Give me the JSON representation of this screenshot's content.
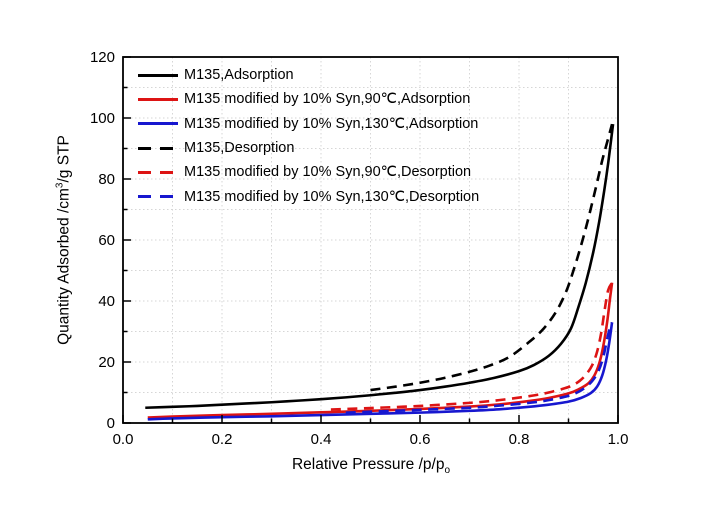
{
  "figure": {
    "background": "#ffffff"
  },
  "chart_data": {
    "type": "line",
    "title": "",
    "xlabel": {
      "text": "Relative Pressure /p/p",
      "sub": "o"
    },
    "ylabel": {
      "prefix": "Quantity Adsorbed /cm",
      "sup": "3",
      "suffix": "/g STP"
    },
    "xlim": [
      0.0,
      1.0
    ],
    "ylim": [
      0,
      120
    ],
    "x_ticks": {
      "values": [
        0.0,
        0.2,
        0.4,
        0.6,
        0.8,
        1.0
      ],
      "labels": [
        "0.0",
        "0.2",
        "0.4",
        "0.6",
        "0.8",
        "1.0"
      ]
    },
    "y_ticks": {
      "values": [
        0,
        20,
        40,
        60,
        80,
        100,
        120
      ],
      "labels": [
        "0",
        "20",
        "40",
        "60",
        "80",
        "100",
        "120"
      ]
    },
    "x_minor_step": 0.1,
    "y_minor_step": 10,
    "grid": {
      "show": true,
      "style": "dotted",
      "color": "#d6d6d6",
      "x_step": 0.1,
      "y_step": 10
    },
    "axis_color": "#000000",
    "legend_position": "top-left-inside",
    "series": [
      {
        "name": "M135,Adsorption",
        "color": "#000000",
        "line_style": "solid",
        "points": [
          [
            0.045,
            5.0
          ],
          [
            0.1,
            5.3
          ],
          [
            0.15,
            5.6
          ],
          [
            0.2,
            6.0
          ],
          [
            0.25,
            6.4
          ],
          [
            0.3,
            6.8
          ],
          [
            0.35,
            7.3
          ],
          [
            0.4,
            7.8
          ],
          [
            0.45,
            8.4
          ],
          [
            0.5,
            9.1
          ],
          [
            0.55,
            9.9
          ],
          [
            0.6,
            10.8
          ],
          [
            0.65,
            11.9
          ],
          [
            0.7,
            13.2
          ],
          [
            0.75,
            14.8
          ],
          [
            0.8,
            17.0
          ],
          [
            0.83,
            19.0
          ],
          [
            0.86,
            22.0
          ],
          [
            0.885,
            26.0
          ],
          [
            0.905,
            31.0
          ],
          [
            0.92,
            38.0
          ],
          [
            0.935,
            46.0
          ],
          [
            0.95,
            56.0
          ],
          [
            0.962,
            66.0
          ],
          [
            0.972,
            76.0
          ],
          [
            0.98,
            85.0
          ],
          [
            0.99,
            98.0
          ]
        ]
      },
      {
        "name": "M135 modified by 10% Syn,90℃,Adsorption",
        "color": "#dd1414",
        "line_style": "solid",
        "points": [
          [
            0.05,
            1.8
          ],
          [
            0.1,
            2.1
          ],
          [
            0.2,
            2.6
          ],
          [
            0.3,
            3.0
          ],
          [
            0.4,
            3.5
          ],
          [
            0.5,
            4.0
          ],
          [
            0.6,
            4.6
          ],
          [
            0.7,
            5.4
          ],
          [
            0.76,
            6.1
          ],
          [
            0.82,
            7.2
          ],
          [
            0.86,
            8.2
          ],
          [
            0.9,
            9.7
          ],
          [
            0.92,
            11.0
          ],
          [
            0.94,
            13.0
          ],
          [
            0.952,
            15.5
          ],
          [
            0.962,
            19.5
          ],
          [
            0.97,
            25.0
          ],
          [
            0.978,
            33.0
          ],
          [
            0.984,
            41.0
          ],
          [
            0.988,
            46.0
          ]
        ]
      },
      {
        "name": "M135 modified by 10% Syn,130℃,Adsorption",
        "color": "#1717cf",
        "line_style": "solid",
        "points": [
          [
            0.05,
            1.2
          ],
          [
            0.1,
            1.5
          ],
          [
            0.2,
            1.9
          ],
          [
            0.3,
            2.2
          ],
          [
            0.4,
            2.6
          ],
          [
            0.5,
            3.0
          ],
          [
            0.6,
            3.4
          ],
          [
            0.7,
            4.0
          ],
          [
            0.76,
            4.5
          ],
          [
            0.82,
            5.3
          ],
          [
            0.86,
            6.0
          ],
          [
            0.9,
            7.0
          ],
          [
            0.925,
            8.2
          ],
          [
            0.945,
            9.8
          ],
          [
            0.958,
            12.0
          ],
          [
            0.968,
            15.5
          ],
          [
            0.976,
            20.5
          ],
          [
            0.982,
            26.0
          ],
          [
            0.988,
            33.0
          ]
        ]
      },
      {
        "name": "M135,Desorption",
        "color": "#000000",
        "line_style": "dashed",
        "points": [
          [
            0.5,
            10.8
          ],
          [
            0.55,
            11.9
          ],
          [
            0.6,
            13.2
          ],
          [
            0.65,
            14.8
          ],
          [
            0.7,
            16.8
          ],
          [
            0.74,
            18.8
          ],
          [
            0.78,
            21.6
          ],
          [
            0.82,
            26.5
          ],
          [
            0.85,
            31.0
          ],
          [
            0.875,
            36.5
          ],
          [
            0.895,
            43.0
          ],
          [
            0.91,
            50.0
          ],
          [
            0.925,
            58.0
          ],
          [
            0.94,
            67.0
          ],
          [
            0.955,
            77.0
          ],
          [
            0.968,
            86.0
          ],
          [
            0.978,
            92.0
          ],
          [
            0.988,
            98.0
          ]
        ]
      },
      {
        "name": "M135 modified by 10% Syn,90℃,Desorption",
        "color": "#dd1414",
        "line_style": "dashed",
        "points": [
          [
            0.42,
            4.4
          ],
          [
            0.5,
            4.9
          ],
          [
            0.6,
            5.6
          ],
          [
            0.7,
            6.6
          ],
          [
            0.76,
            7.5
          ],
          [
            0.82,
            8.8
          ],
          [
            0.86,
            10.0
          ],
          [
            0.9,
            11.8
          ],
          [
            0.92,
            13.5
          ],
          [
            0.935,
            15.8
          ],
          [
            0.948,
            19.0
          ],
          [
            0.958,
            23.5
          ],
          [
            0.966,
            29.5
          ],
          [
            0.973,
            37.0
          ],
          [
            0.98,
            43.5
          ],
          [
            0.988,
            46.0
          ]
        ]
      },
      {
        "name": "M135 modified by 10% Syn,130℃,Desorption",
        "color": "#1717cf",
        "line_style": "dashed",
        "points": [
          [
            0.45,
            3.4
          ],
          [
            0.5,
            3.7
          ],
          [
            0.6,
            4.3
          ],
          [
            0.7,
            5.0
          ],
          [
            0.76,
            5.7
          ],
          [
            0.82,
            6.6
          ],
          [
            0.86,
            7.5
          ],
          [
            0.9,
            8.9
          ],
          [
            0.92,
            10.2
          ],
          [
            0.935,
            11.8
          ],
          [
            0.948,
            13.8
          ],
          [
            0.96,
            16.8
          ],
          [
            0.97,
            21.5
          ],
          [
            0.978,
            27.5
          ],
          [
            0.984,
            31.5
          ],
          [
            0.988,
            33.0
          ]
        ]
      }
    ]
  }
}
